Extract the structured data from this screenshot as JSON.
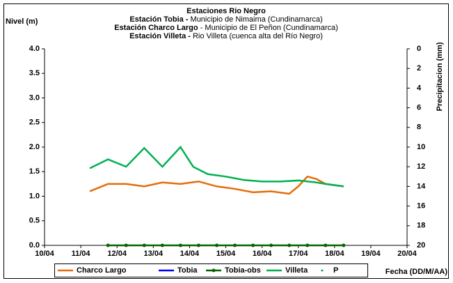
{
  "chart_data": {
    "type": "line",
    "title": "Estaciones Rio Negro",
    "subtitle": [
      {
        "station": "Estación Tobia -",
        "place": "Municipio de Nimaima (Cundinamarca)"
      },
      {
        "station": "Estación Charco Largo",
        "place": "- Municipio de El Peñon (Cundinamarca)"
      },
      {
        "station": "Estación Villeta -",
        "place": "Rio Villeta (cuenca alta del Río Negro)"
      }
    ],
    "y_label": "Nivel (m)",
    "y2_label": "Precipitacion (mm)",
    "x_label": "Fecha (DD/M/AA)",
    "xlim": [
      10,
      20
    ],
    "xticks": [
      {
        "value": 10,
        "label": "10/04"
      },
      {
        "value": 11,
        "label": "11/04"
      },
      {
        "value": 12,
        "label": "12/04"
      },
      {
        "value": 13,
        "label": "13/04"
      },
      {
        "value": 14,
        "label": "14/04"
      },
      {
        "value": 15,
        "label": "15/04"
      },
      {
        "value": 16,
        "label": "16/04"
      },
      {
        "value": 17,
        "label": "17/04"
      },
      {
        "value": 18,
        "label": "18/04"
      },
      {
        "value": 19,
        "label": "19/04"
      },
      {
        "value": 20,
        "label": "20/04"
      }
    ],
    "ylim": [
      0,
      4
    ],
    "yticks": [
      {
        "value": 0,
        "label": "0.0"
      },
      {
        "value": 0.5,
        "label": "0.5"
      },
      {
        "value": 1,
        "label": "1.0"
      },
      {
        "value": 1.5,
        "label": "1.5"
      },
      {
        "value": 2,
        "label": "2.0"
      },
      {
        "value": 2.5,
        "label": "2.5"
      },
      {
        "value": 3,
        "label": "3.0"
      },
      {
        "value": 3.5,
        "label": "3.5"
      },
      {
        "value": 4,
        "label": "4.0"
      }
    ],
    "y2lim": [
      20,
      0
    ],
    "y2ticks": [
      0,
      2,
      4,
      6,
      8,
      10,
      12,
      14,
      16,
      18,
      20
    ],
    "grid": false,
    "legend": "bottom",
    "series": [
      {
        "name": "Charco Largo",
        "color": "#e46c0a",
        "x": [
          11.25,
          11.75,
          12.25,
          12.75,
          13.25,
          13.75,
          14.25,
          14.75,
          15.25,
          15.75,
          16.25,
          16.75,
          17.0,
          17.25,
          17.5,
          17.75,
          18.25
        ],
        "values": [
          1.1,
          1.25,
          1.25,
          1.2,
          1.28,
          1.25,
          1.3,
          1.2,
          1.15,
          1.08,
          1.1,
          1.05,
          1.2,
          1.4,
          1.35,
          1.25,
          1.2
        ]
      },
      {
        "name": "Tobia",
        "color": "#0000ff",
        "x": [],
        "values": []
      },
      {
        "name": "Tobia-obs",
        "color": "#006400",
        "marker": "circle",
        "x": [
          11.75,
          12.25,
          12.75,
          13.25,
          13.75,
          14.25,
          14.75,
          15.25,
          15.75,
          16.25,
          16.75,
          17.25,
          17.75,
          18.25
        ],
        "values": [
          0,
          0,
          0,
          0,
          0,
          0,
          0,
          0,
          0,
          0,
          0,
          0,
          0,
          0
        ]
      },
      {
        "name": "Villeta",
        "color": "#00b050",
        "x": [
          11.25,
          11.75,
          12.25,
          12.75,
          13.25,
          13.75,
          14.1,
          14.5,
          15.0,
          15.5,
          16.0,
          16.5,
          17.0,
          17.5,
          17.75,
          18.25
        ],
        "values": [
          1.57,
          1.75,
          1.6,
          1.98,
          1.6,
          2.0,
          1.6,
          1.45,
          1.4,
          1.33,
          1.3,
          1.3,
          1.32,
          1.28,
          1.25,
          1.2
        ]
      },
      {
        "name": "P",
        "color": "#00b050",
        "marker": "dot",
        "axis": "y2",
        "x": [],
        "values": []
      }
    ]
  }
}
